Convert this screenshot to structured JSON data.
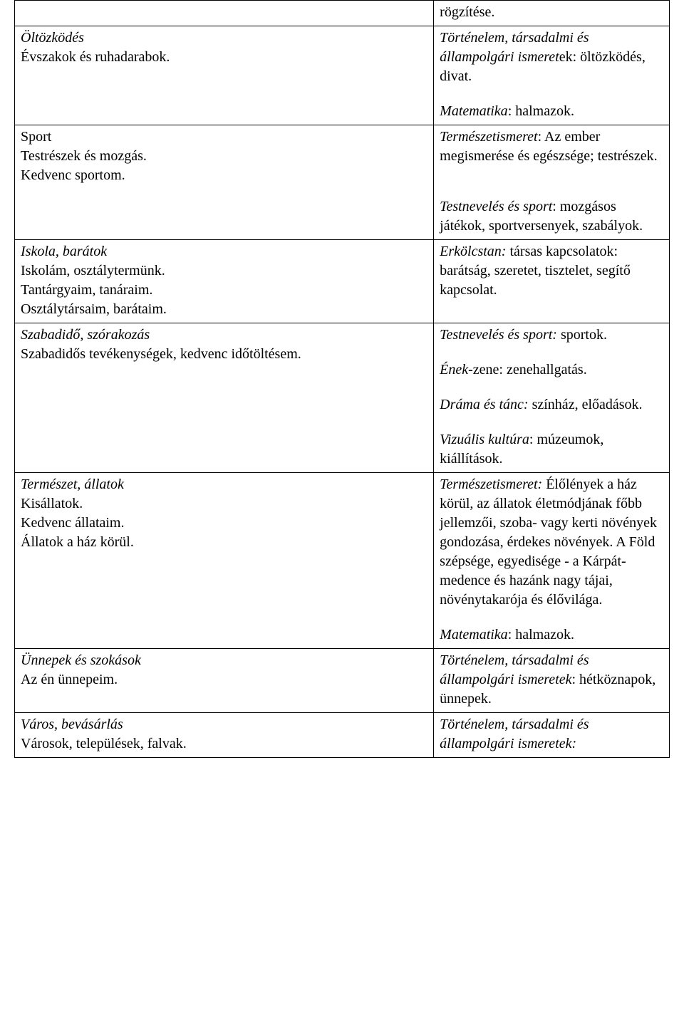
{
  "rows": [
    {
      "left": [],
      "right": [
        {
          "segments": [
            {
              "t": "rögzítése.",
              "it": false
            }
          ]
        }
      ]
    },
    {
      "left": [
        {
          "segments": [
            {
              "t": "Öltözködés",
              "it": true
            }
          ]
        },
        {
          "segments": [
            {
              "t": "Évszakok és ruhadarabok.",
              "it": false
            }
          ]
        }
      ],
      "right": [
        {
          "segments": [
            {
              "t": "Történelem, társadalmi és állampolgári ismeret",
              "it": true
            },
            {
              "t": "ek: öltözködés, divat.",
              "it": false
            }
          ]
        },
        {
          "space": true
        },
        {
          "segments": [
            {
              "t": "Matematika",
              "it": true
            },
            {
              "t": ": halmazok.",
              "it": false
            }
          ]
        }
      ]
    },
    {
      "left": [
        {
          "segments": [
            {
              "t": "Sport",
              "it": false
            }
          ]
        },
        {
          "segments": [
            {
              "t": "Testrészek és mozgás.",
              "it": false
            }
          ]
        },
        {
          "segments": [
            {
              "t": "Kedvenc sportom.",
              "it": false
            }
          ]
        }
      ],
      "right": [
        {
          "segments": [
            {
              "t": "Természetismeret",
              "it": true
            },
            {
              "t": ": Az ember megismerése és egészsége; testrészek.",
              "it": false
            }
          ]
        },
        {
          "space": true
        },
        {
          "space": true
        },
        {
          "segments": [
            {
              "t": "Testnevelés és sport",
              "it": true
            },
            {
              "t": ": mozgásos játékok, sportversenyek, szabályok.",
              "it": false
            }
          ]
        }
      ]
    },
    {
      "left": [
        {
          "segments": [
            {
              "t": "Iskola, barátok",
              "it": true
            }
          ]
        },
        {
          "segments": [
            {
              "t": "Iskolám, osztálytermünk.",
              "it": false
            }
          ]
        },
        {
          "segments": [
            {
              "t": "Tantárgyaim, tanáraim.",
              "it": false
            }
          ]
        },
        {
          "segments": [
            {
              "t": "Osztálytársaim, barátaim.",
              "it": false
            }
          ]
        }
      ],
      "right": [
        {
          "segments": [
            {
              "t": "Erkölcstan:",
              "it": true
            },
            {
              "t": " társas kapcsolatok: barátság, szeretet, tisztelet, segítő kapcsolat.",
              "it": false
            }
          ]
        }
      ]
    },
    {
      "left": [
        {
          "segments": [
            {
              "t": "Szabadidő, szórakozás",
              "it": true
            }
          ]
        },
        {
          "segments": [
            {
              "t": "Szabadidős tevékenységek, kedvenc időtöltésem.",
              "it": false
            }
          ]
        }
      ],
      "right": [
        {
          "segments": [
            {
              "t": "Testnevelés és sport:",
              "it": true
            },
            {
              "t": " sportok.",
              "it": false
            }
          ]
        },
        {
          "space": true
        },
        {
          "segments": [
            {
              "t": "Ének-",
              "it": true
            },
            {
              "t": "zene: zenehallgatás.",
              "it": false
            }
          ]
        },
        {
          "space": true
        },
        {
          "segments": [
            {
              "t": "Dráma és tánc:",
              "it": true
            },
            {
              "t": " színház, előadások.",
              "it": false
            }
          ]
        },
        {
          "space": true
        },
        {
          "segments": [
            {
              "t": "Vizuális kultúra",
              "it": true
            },
            {
              "t": ": múzeumok, kiállítások.",
              "it": false
            }
          ]
        }
      ]
    },
    {
      "left": [
        {
          "segments": [
            {
              "t": "Természet, állatok",
              "it": true
            }
          ]
        },
        {
          "segments": [
            {
              "t": "Kisállatok.",
              "it": false
            }
          ]
        },
        {
          "segments": [
            {
              "t": "Kedvenc állataim.",
              "it": false
            }
          ]
        },
        {
          "segments": [
            {
              "t": "Állatok a ház körül.",
              "it": false
            }
          ]
        }
      ],
      "right": [
        {
          "segments": [
            {
              "t": "Természetismeret:",
              "it": true
            },
            {
              "t": " Élőlények a ház körül, az állatok életmódjának főbb jellemzői, szoba- vagy kerti növények gondozása, érdekes növények. A Föld szépsége, egyedisége - a Kárpát-medence és hazánk nagy tájai, növénytakarója és élővilága.",
              "it": false
            }
          ]
        },
        {
          "space": true
        },
        {
          "segments": [
            {
              "t": "Matematika",
              "it": true
            },
            {
              "t": ": halmazok.",
              "it": false
            }
          ]
        }
      ]
    },
    {
      "left": [
        {
          "segments": [
            {
              "t": "Ünnepek és szokások",
              "it": true
            }
          ]
        },
        {
          "segments": [
            {
              "t": "Az én ünnepeim.",
              "it": false
            }
          ]
        }
      ],
      "right": [
        {
          "segments": [
            {
              "t": "Történelem, társadalmi és állampolgári ismeretek",
              "it": true
            },
            {
              "t": ": hétköznapok, ünnepek.",
              "it": false
            }
          ]
        }
      ]
    },
    {
      "left": [
        {
          "segments": [
            {
              "t": "Város, bevásárlás",
              "it": true
            }
          ]
        },
        {
          "segments": [
            {
              "t": "Városok, települések, falvak.",
              "it": false
            }
          ]
        }
      ],
      "right": [
        {
          "segments": [
            {
              "t": "Történelem, társadalmi és állampolgári ismeretek:",
              "it": true
            }
          ]
        }
      ]
    }
  ]
}
